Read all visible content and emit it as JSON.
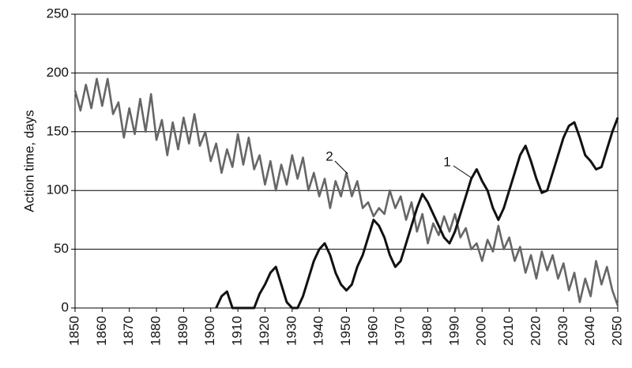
{
  "chart_data": {
    "type": "line",
    "y_label": "Action time, days",
    "x": [
      1850,
      1852,
      1854,
      1856,
      1858,
      1860,
      1862,
      1864,
      1866,
      1868,
      1870,
      1872,
      1874,
      1876,
      1878,
      1880,
      1882,
      1884,
      1886,
      1888,
      1890,
      1892,
      1894,
      1896,
      1898,
      1900,
      1902,
      1904,
      1906,
      1908,
      1910,
      1912,
      1914,
      1916,
      1918,
      1920,
      1922,
      1924,
      1926,
      1928,
      1930,
      1932,
      1934,
      1936,
      1938,
      1940,
      1942,
      1944,
      1946,
      1948,
      1950,
      1952,
      1954,
      1956,
      1958,
      1960,
      1962,
      1964,
      1966,
      1968,
      1970,
      1972,
      1974,
      1976,
      1978,
      1980,
      1982,
      1984,
      1986,
      1988,
      1990,
      1992,
      1994,
      1996,
      1998,
      2000,
      2002,
      2004,
      2006,
      2008,
      2010,
      2012,
      2014,
      2016,
      2018,
      2020,
      2022,
      2024,
      2026,
      2028,
      2030,
      2032,
      2034,
      2036,
      2038,
      2040,
      2042,
      2044,
      2046,
      2048,
      2050
    ],
    "series": [
      {
        "name": "1",
        "color": "#111111",
        "values": [
          null,
          null,
          null,
          null,
          null,
          null,
          null,
          null,
          null,
          null,
          null,
          null,
          null,
          null,
          null,
          null,
          null,
          null,
          null,
          null,
          null,
          null,
          null,
          null,
          null,
          null,
          0,
          10,
          14,
          0,
          0,
          0,
          0,
          0,
          12,
          20,
          30,
          35,
          20,
          5,
          0,
          0,
          10,
          25,
          40,
          50,
          55,
          45,
          30,
          20,
          15,
          20,
          35,
          45,
          60,
          75,
          70,
          60,
          45,
          35,
          40,
          55,
          70,
          85,
          97,
          90,
          80,
          70,
          60,
          55,
          65,
          80,
          95,
          110,
          118,
          108,
          100,
          85,
          75,
          85,
          100,
          115,
          130,
          138,
          125,
          110,
          98,
          100,
          115,
          130,
          145,
          155,
          158,
          145,
          130,
          125,
          118,
          120,
          135,
          150,
          162
        ]
      },
      {
        "name": "2",
        "color": "#666666",
        "values": [
          185,
          168,
          190,
          170,
          195,
          172,
          195,
          165,
          175,
          145,
          170,
          148,
          178,
          150,
          182,
          143,
          160,
          130,
          158,
          135,
          162,
          140,
          165,
          138,
          150,
          125,
          140,
          115,
          135,
          120,
          148,
          122,
          145,
          118,
          130,
          105,
          125,
          100,
          122,
          105,
          130,
          110,
          128,
          100,
          115,
          95,
          110,
          85,
          108,
          95,
          115,
          95,
          108,
          85,
          90,
          78,
          85,
          80,
          100,
          85,
          95,
          75,
          90,
          65,
          80,
          55,
          72,
          62,
          78,
          65,
          80,
          60,
          68,
          50,
          55,
          40,
          58,
          48,
          70,
          50,
          60,
          40,
          52,
          30,
          45,
          25,
          48,
          32,
          45,
          25,
          38,
          15,
          30,
          5,
          25,
          10,
          40,
          20,
          35,
          15,
          2
        ]
      }
    ],
    "xlim": [
      1850,
      2050
    ],
    "xticks": [
      1850,
      1860,
      1870,
      1880,
      1890,
      1900,
      1910,
      1920,
      1930,
      1940,
      1950,
      1960,
      1970,
      1980,
      1990,
      2000,
      2010,
      2020,
      2030,
      2040,
      2050
    ],
    "ylim": [
      0,
      250
    ],
    "yticks": [
      0,
      50,
      100,
      150,
      200,
      250
    ],
    "grid": true
  }
}
